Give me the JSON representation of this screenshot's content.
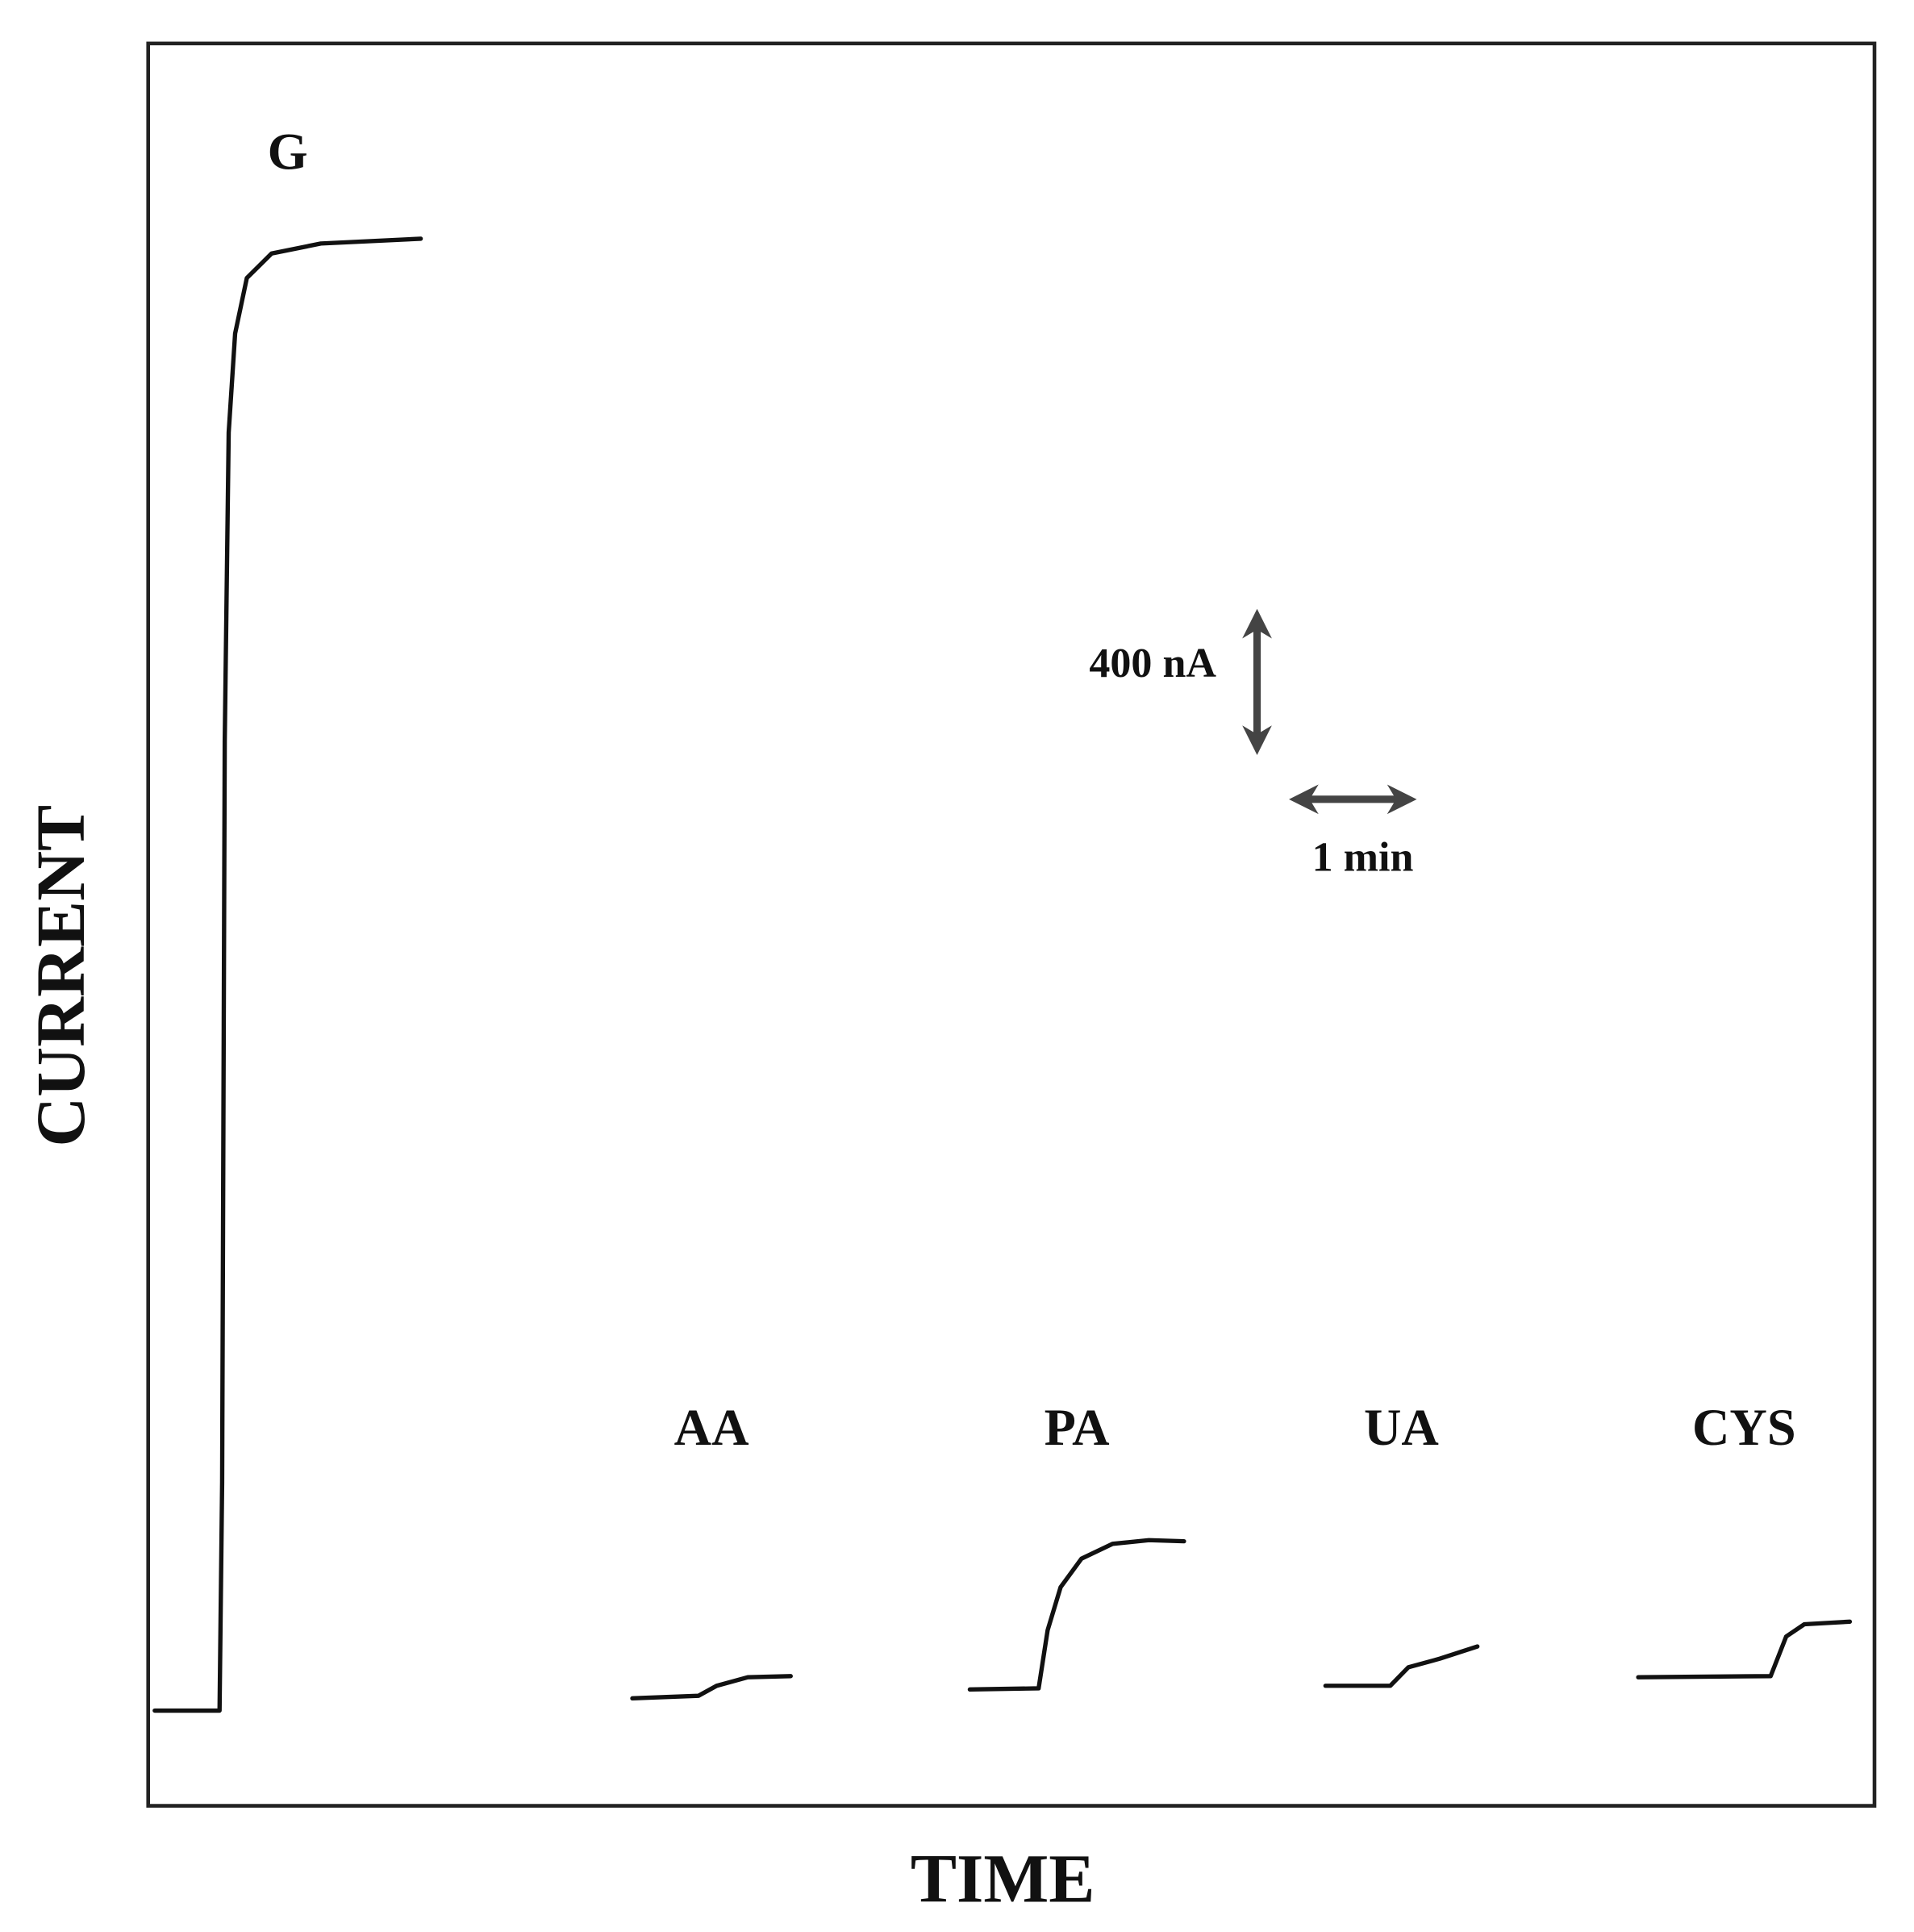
{
  "chart_data": {
    "type": "line",
    "xlabel": "TIME",
    "ylabel": "CURRENT",
    "xlim": [
      0,
      13.3
    ],
    "ylim": [
      -257,
      4500
    ],
    "color": "#111111",
    "series": [
      {
        "name": "G",
        "x": [
          0.05,
          0.55,
          0.57,
          0.59,
          0.62,
          0.67,
          0.76,
          0.95,
          1.33,
          2.1
        ],
        "values": [
          0,
          0,
          617,
          2617,
          3450,
          3717,
          3867,
          3933,
          3960,
          3973
        ]
      },
      {
        "name": "AA",
        "x": [
          3.73,
          4.24,
          4.38,
          4.62,
          4.95
        ],
        "values": [
          33,
          40,
          67,
          90,
          93
        ]
      },
      {
        "name": "PA",
        "x": [
          6.33,
          6.86,
          6.93,
          7.03,
          7.19,
          7.43,
          7.71,
          7.98
        ],
        "values": [
          57,
          60,
          217,
          333,
          410,
          450,
          460,
          457
        ]
      },
      {
        "name": "UA",
        "x": [
          9.07,
          9.57,
          9.71,
          9.95,
          10.24
        ],
        "values": [
          67,
          67,
          117,
          140,
          173
        ]
      },
      {
        "name": "CYS",
        "x": [
          11.48,
          12.5,
          12.62,
          12.76,
          13.11
        ],
        "values": [
          90,
          93,
          200,
          233,
          240
        ]
      }
    ],
    "scale_bar": {
      "y": {
        "value": 400,
        "label": "400 nA"
      },
      "x": {
        "value": 1,
        "label": "1 min"
      }
    },
    "scale_bar_color": "#444444"
  }
}
